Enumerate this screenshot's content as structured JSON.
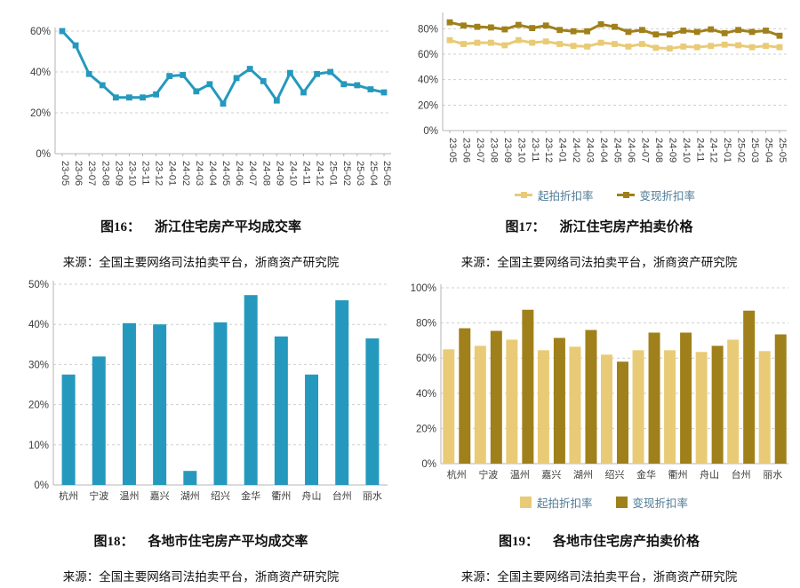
{
  "colors": {
    "teal": "#2599bd",
    "light_gold": "#e9cb77",
    "dark_gold": "#a0801a",
    "grid": "#cfcfcf",
    "axis": "#b5b5b5",
    "tick_text": "#3d3d3d",
    "legend_text": "#4d7a96"
  },
  "chart_data": [
    {
      "type": "line",
      "title_label": "图16：",
      "title": "浙江住宅房产平均成交率",
      "source": "来源：全国主要网络司法拍卖平台，浙商资产研究院",
      "x": [
        "23-05",
        "23-06",
        "23-07",
        "23-08",
        "23-09",
        "23-10",
        "23-11",
        "23-12",
        "24-01",
        "24-02",
        "24-03",
        "24-04",
        "24-05",
        "24-06",
        "24-07",
        "24-08",
        "24-09",
        "24-10",
        "24-11",
        "24-12",
        "25-01",
        "25-02",
        "25-03",
        "25-04",
        "25-05"
      ],
      "series": [
        {
          "name": "平均成交率",
          "color_key": "teal",
          "values": [
            60,
            53,
            39,
            33.5,
            27.5,
            27.5,
            27.5,
            29,
            38,
            38.5,
            30.5,
            34,
            24.5,
            37,
            41.5,
            35.5,
            26,
            39.5,
            30,
            39,
            40,
            34,
            33.5,
            31.5,
            30
          ]
        }
      ],
      "ylim": [
        0,
        60
      ],
      "yticks": [
        0,
        20,
        40,
        60
      ],
      "grid": true,
      "legend_position": null
    },
    {
      "type": "line",
      "title_label": "图17：",
      "title": "浙江住宅房产拍卖价格",
      "source": "来源：全国主要网络司法拍卖平台，浙商资产研究院",
      "x": [
        "23-05",
        "23-06",
        "23-07",
        "23-08",
        "23-09",
        "23-10",
        "23-11",
        "23-12",
        "24-01",
        "24-02",
        "24-03",
        "24-04",
        "24-05",
        "24-06",
        "24-07",
        "24-08",
        "24-09",
        "24-10",
        "24-11",
        "24-12",
        "25-01",
        "25-02",
        "25-03",
        "25-04",
        "25-05"
      ],
      "series": [
        {
          "name": "起拍折扣率",
          "color_key": "light_gold",
          "values": [
            71,
            68,
            69,
            69,
            67,
            71,
            69,
            70,
            68,
            66.5,
            66,
            69,
            68,
            66,
            68,
            65,
            64.5,
            66,
            65.5,
            66.5,
            67.5,
            67,
            65.5,
            66.5,
            65.5
          ]
        },
        {
          "name": "变现折扣率",
          "color_key": "dark_gold",
          "values": [
            85,
            82.5,
            81.5,
            81,
            79.5,
            83,
            80.5,
            82.5,
            79,
            78,
            78,
            83.5,
            81.5,
            77.5,
            79,
            75.5,
            75.5,
            78.5,
            77.5,
            79.5,
            76.5,
            79,
            77.5,
            78.5,
            74.5
          ]
        }
      ],
      "ylim": [
        0,
        90
      ],
      "yticks": [
        0,
        20,
        40,
        60,
        80
      ],
      "grid": true,
      "legend_position": "bottom"
    },
    {
      "type": "bar",
      "title_label": "图18：",
      "title": "各地市住宅房产平均成交率",
      "source": "来源：全国主要网络司法拍卖平台，浙商资产研究院",
      "categories": [
        "杭州",
        "宁波",
        "温州",
        "嘉兴",
        "湖州",
        "绍兴",
        "金华",
        "衢州",
        "舟山",
        "台州",
        "丽水"
      ],
      "series": [
        {
          "name": "平均成交率",
          "color_key": "teal",
          "values": [
            27.5,
            32,
            40.3,
            40,
            3.5,
            40.5,
            47.3,
            37,
            27.5,
            46,
            36.5
          ]
        }
      ],
      "ylim": [
        0,
        50
      ],
      "yticks": [
        0,
        10,
        20,
        30,
        40,
        50
      ],
      "grid": true,
      "legend_position": null
    },
    {
      "type": "bar",
      "title_label": "图19：",
      "title": "各地市住宅房产拍卖价格",
      "source": "来源：全国主要网络司法拍卖平台，浙商资产研究院",
      "categories": [
        "杭州",
        "宁波",
        "温州",
        "嘉兴",
        "湖州",
        "绍兴",
        "金华",
        "衢州",
        "舟山",
        "台州",
        "丽水"
      ],
      "series": [
        {
          "name": "起拍折扣率",
          "color_key": "light_gold",
          "values": [
            65,
            67,
            70.5,
            64.5,
            66.5,
            62,
            64.5,
            64.5,
            63.5,
            70.5,
            64
          ]
        },
        {
          "name": "变现折扣率",
          "color_key": "dark_gold",
          "values": [
            77,
            75.5,
            87.5,
            71.5,
            76,
            58,
            74.5,
            74.5,
            67,
            87,
            73.5
          ]
        }
      ],
      "ylim": [
        0,
        100
      ],
      "yticks": [
        0,
        20,
        40,
        60,
        80,
        100
      ],
      "grid": true,
      "legend_position": "bottom"
    }
  ]
}
